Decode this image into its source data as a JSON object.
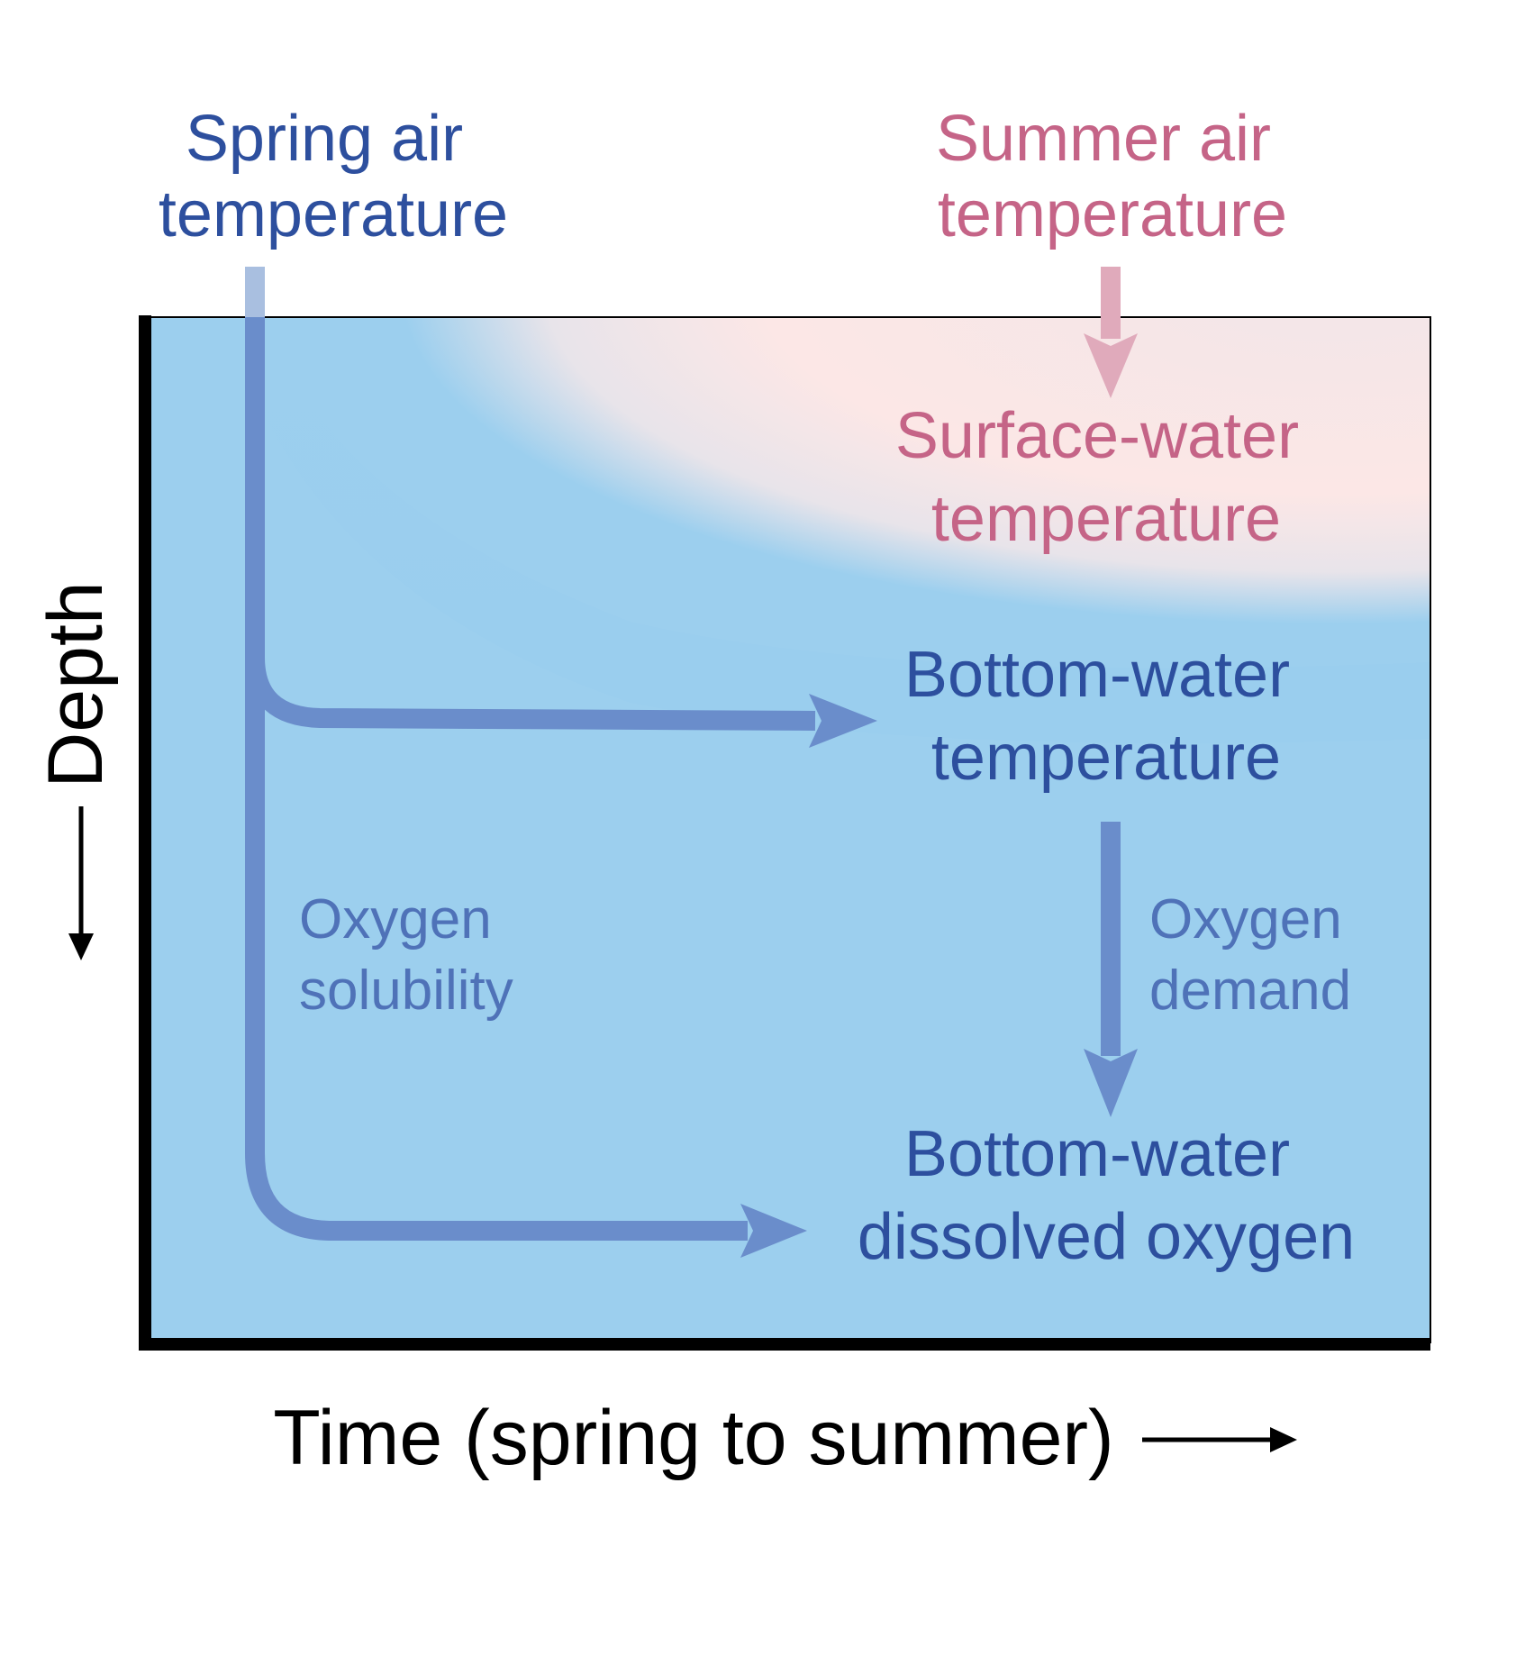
{
  "labels": {
    "spring_air": [
      "Spring air",
      "temperature"
    ],
    "summer_air": [
      "Summer air",
      "temperature"
    ],
    "surface_water": [
      "Surface-water",
      "temperature"
    ],
    "bottom_water_temp": [
      "Bottom-water",
      "temperature"
    ],
    "oxygen_solubility": [
      "Oxygen",
      "solubility"
    ],
    "oxygen_demand": [
      "Oxygen",
      "demand"
    ],
    "bottom_water_oxygen": [
      "Bottom-water",
      "dissolved oxygen"
    ]
  },
  "axes": {
    "y_label": "Depth",
    "x_label": "Time (spring to summer)"
  },
  "colors": {
    "water_blue": "#9ccfee",
    "surface_warm": "#fbe9e8",
    "blue_text": "#2d4f9e",
    "pink_text": "#c56487",
    "arrow_blue": "#6a8dcb",
    "arrow_pink": "#e0aabb",
    "spring_stem": "#a9bfe0",
    "light_blue_text": "#4f72b8",
    "axis_black": "#000000"
  }
}
